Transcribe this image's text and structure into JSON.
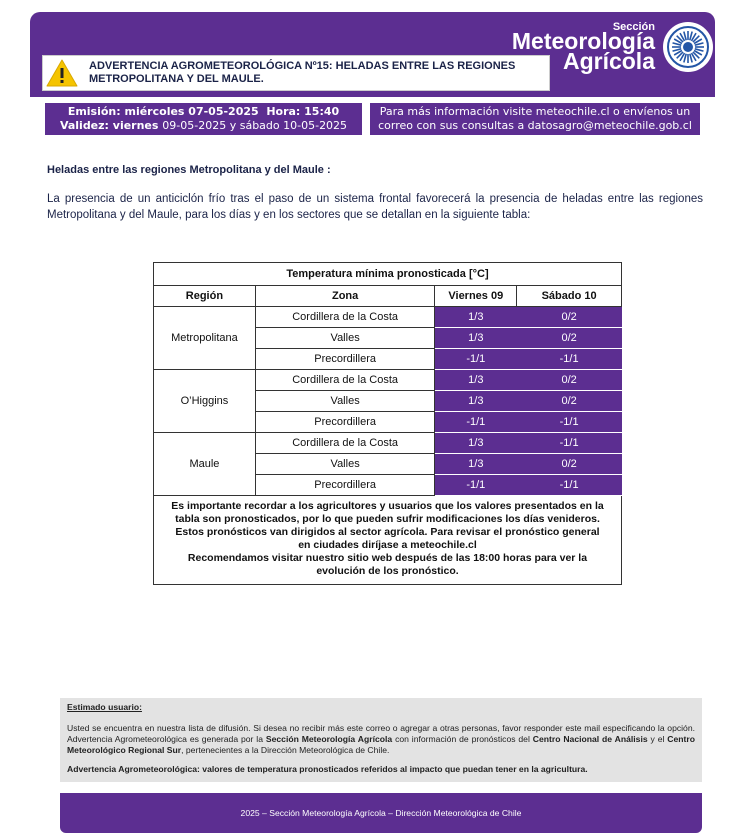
{
  "header": {
    "section_small": "Sección",
    "section_name_1": "Meteorología",
    "section_name_2": "Agrícola",
    "alert_title": "ADVERTENCIA AGROMETEOROLÓGICA Nº15: HELADAS ENTRE LAS REGIONES METROPOLITANA Y DEL MAULE."
  },
  "issue": {
    "emission": "Emisión: miércoles 07-05-2025  Hora: 15:40",
    "validity_label": "Validez: viernes",
    "validity_dates": "09-05-2025 y sábado 10-05-2025"
  },
  "contact": "Para más información visite meteochile.cl o envíenos un correo con sus consultas a datosagro@meteochile.gob.cl",
  "body": {
    "heading": "Heladas entre las regiones Metropolitana y del Maule :",
    "paragraph": "La presencia de un anticiclón frío tras el paso de un sistema frontal favorecerá la presencia de heladas entre las regiones Metropolitana y del Maule, para los días y en los sectores que se detallan en la siguiente tabla:"
  },
  "table": {
    "title": "Temperatura mínima pronosticada [°C]",
    "headers": [
      "Región",
      "Zona",
      "Viernes 09",
      "Sábado 10"
    ],
    "groups": [
      {
        "region": "Metropolitana",
        "rows": [
          [
            "Cordillera de la Costa",
            "1/3",
            "0/2"
          ],
          [
            "Valles",
            "1/3",
            "0/2"
          ],
          [
            "Precordillera",
            "-1/1",
            "-1/1"
          ]
        ]
      },
      {
        "region": "O’Higgins",
        "rows": [
          [
            "Cordillera de la Costa",
            "1/3",
            "0/2"
          ],
          [
            "Valles",
            "1/3",
            "0/2"
          ],
          [
            "Precordillera",
            "-1/1",
            "-1/1"
          ]
        ]
      },
      {
        "region": "Maule",
        "rows": [
          [
            "Cordillera de la Costa",
            "1/3",
            "-1/1"
          ],
          [
            "Valles",
            "1/3",
            "0/2"
          ],
          [
            "Precordillera",
            "-1/1",
            "-1/1"
          ]
        ]
      }
    ],
    "note": [
      "Es importante recordar a los agricultores y usuarios que los valores presentados en la tabla son pronosticados, por lo que pueden sufrir modificaciones los días venideros.",
      "Estos pronósticos van dirigidos al sector agrícola. Para revisar el pronóstico general en ciudades diríjase a meteochile.cl",
      "Recomendamos visitar nuestro sitio web después de las 18:00 horas para ver la evolución de los pronóstico."
    ]
  },
  "notice": {
    "greeting": "Estimado usuario:",
    "paragraph": [
      "Usted se encuentra en nuestra lista de difusión. Si desea no recibir más este correo o agregar a otras personas, favor responder este mail especificando la opción. Advertencia Agrometeorológica es generada por la",
      "Sección Meteorología Agrícola",
      "con información de pronósticos del",
      "Centro Nacional de Análisis",
      "y el",
      "Centro Meteorológico Regional Sur",
      ", pertenecientes a la Dirección Meteorológica de Chile."
    ],
    "closing": "Advertencia Agrometeorológica: valores de temperatura pronosticados referidos al impacto que puedan tener en la agricultura."
  },
  "footer": "2025 – Sección Meteorología Agrícola – Dirección Meteorológica de Chile"
}
